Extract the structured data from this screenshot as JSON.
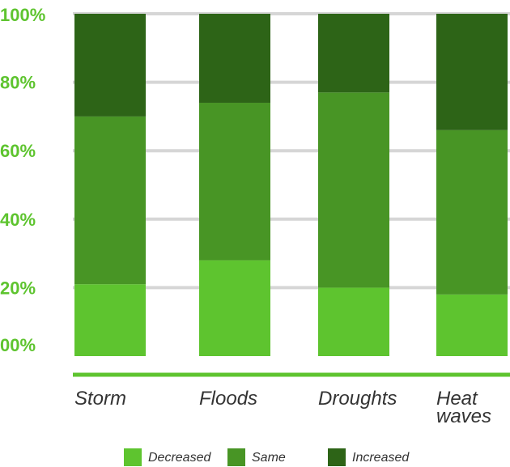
{
  "chart_data": {
    "type": "bar",
    "stacked": true,
    "categories": [
      "Storm",
      "Floods",
      "Droughts",
      "Heat waves"
    ],
    "category_lines": [
      [
        "Storm"
      ],
      [
        "Floods"
      ],
      [
        "Droughts"
      ],
      [
        "Heat",
        "waves"
      ]
    ],
    "series": [
      {
        "name": "Decreased",
        "values": [
          21,
          28,
          20,
          18
        ],
        "color": "#5ec42f"
      },
      {
        "name": "Same",
        "values": [
          49,
          46,
          57,
          48
        ],
        "color": "#489525"
      },
      {
        "name": "Increased",
        "values": [
          30,
          26,
          23,
          34
        ],
        "color": "#2d6417"
      }
    ],
    "yticks": [
      "00%",
      "20%",
      "40%",
      "60%",
      "80%",
      "100%"
    ],
    "ylim": [
      0,
      100
    ],
    "grid": true,
    "legend_position": "bottom",
    "tick_color": "#5ec42f",
    "grid_color": "#d6d6d6",
    "baseline_color": "#5ec42f"
  }
}
